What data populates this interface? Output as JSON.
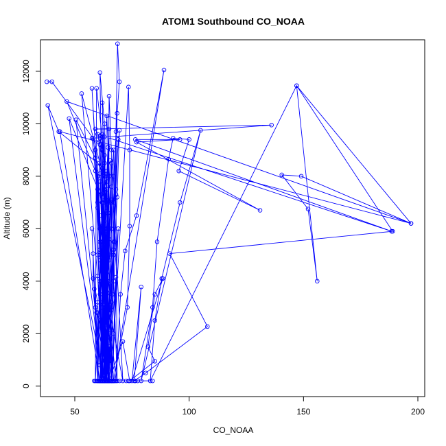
{
  "chart_data": {
    "type": "line",
    "title": "ATOM1 Southbound CO_NOAA",
    "xlabel": "CO_NOAA",
    "ylabel": "Altitude (m)",
    "xlim": [
      35,
      203
    ],
    "ylim": [
      -400,
      13200
    ],
    "xticks": [
      50,
      100,
      150,
      200
    ],
    "yticks": [
      0,
      2000,
      4000,
      6000,
      8000,
      10000,
      12000
    ],
    "grid": false,
    "legend": "none",
    "series_color": "#0000ff",
    "marker": "open-circle",
    "points": [
      [
        37.8,
        11600
      ],
      [
        40,
        11600
      ],
      [
        58,
        9450
      ],
      [
        60,
        8000
      ],
      [
        61,
        6000
      ],
      [
        62,
        4000
      ],
      [
        62.5,
        2000
      ],
      [
        63,
        200
      ],
      [
        38.2,
        10700
      ],
      [
        43,
        9700
      ],
      [
        60,
        8500
      ],
      [
        61,
        6500
      ],
      [
        62,
        3000
      ],
      [
        61,
        200
      ],
      [
        43.5,
        9700
      ],
      [
        197,
        6200
      ],
      [
        46.5,
        10850
      ],
      [
        59,
        8200
      ],
      [
        61,
        5500
      ],
      [
        63,
        3000
      ],
      [
        62,
        200
      ],
      [
        47.5,
        10200
      ],
      [
        62.5,
        7000
      ],
      [
        63,
        4500
      ],
      [
        64,
        2200
      ],
      [
        62,
        200
      ],
      [
        50.5,
        10150
      ],
      [
        63,
        8000
      ],
      [
        64,
        5000
      ],
      [
        64,
        200
      ],
      [
        53,
        11150
      ],
      [
        64,
        7500
      ],
      [
        64.5,
        4000
      ],
      [
        65,
        200
      ],
      [
        57.5,
        11350
      ],
      [
        59,
        9000
      ],
      [
        60,
        7000
      ],
      [
        60,
        5000
      ],
      [
        61,
        3500
      ],
      [
        59,
        200
      ],
      [
        59.5,
        11350
      ],
      [
        62,
        9500
      ],
      [
        62,
        7000
      ],
      [
        63,
        5000
      ],
      [
        63,
        200
      ],
      [
        61,
        11950
      ],
      [
        63,
        10000
      ],
      [
        63,
        7500
      ],
      [
        64,
        5500
      ],
      [
        64,
        3500
      ],
      [
        64,
        200
      ],
      [
        65,
        11050
      ],
      [
        66,
        9000
      ],
      [
        66,
        7000
      ],
      [
        66,
        200
      ],
      [
        68.7,
        13050
      ],
      [
        69.5,
        11600
      ],
      [
        68,
        9700
      ],
      [
        67,
        7000
      ],
      [
        67,
        5000
      ],
      [
        66,
        200
      ],
      [
        73.5,
        11400
      ],
      [
        74,
        9000
      ],
      [
        74,
        6100
      ],
      [
        73,
        3000
      ],
      [
        67,
        200
      ],
      [
        89,
        12050
      ],
      [
        77,
        6500
      ],
      [
        72,
        5150
      ],
      [
        70,
        3500
      ],
      [
        68,
        200
      ],
      [
        57.5,
        9450
      ],
      [
        136,
        9950
      ],
      [
        59,
        9800
      ],
      [
        61,
        9450
      ],
      [
        62,
        9000
      ],
      [
        63,
        8500
      ],
      [
        60,
        9600
      ],
      [
        188.5,
        5900
      ],
      [
        76.5,
        9400
      ],
      [
        96,
        9400
      ],
      [
        77,
        9300
      ],
      [
        131,
        6700
      ],
      [
        95.5,
        8200
      ],
      [
        100,
        9400
      ],
      [
        93,
        9450
      ],
      [
        91,
        8650
      ],
      [
        86,
        5500
      ],
      [
        84,
        3000
      ],
      [
        79,
        200
      ],
      [
        105,
        9750
      ],
      [
        96,
        7000
      ],
      [
        88,
        4100
      ],
      [
        85,
        2500
      ],
      [
        83,
        200
      ],
      [
        147,
        11450
      ],
      [
        156,
        4000
      ],
      [
        152,
        6750
      ],
      [
        140.5,
        8050
      ],
      [
        149,
        8000
      ],
      [
        197,
        6200
      ],
      [
        147,
        11450
      ],
      [
        189,
        5900
      ],
      [
        91.5,
        5050
      ],
      [
        108,
        2270
      ],
      [
        81,
        500
      ],
      [
        76,
        200
      ],
      [
        79,
        3780
      ],
      [
        75,
        200
      ],
      [
        88.5,
        4100
      ],
      [
        85,
        3500
      ],
      [
        82,
        1500
      ],
      [
        85,
        950
      ],
      [
        74,
        200
      ],
      [
        71,
        1700
      ],
      [
        65,
        200
      ],
      [
        60,
        2800
      ],
      [
        61.5,
        200
      ],
      [
        59,
        3000
      ],
      [
        60.5,
        200
      ],
      [
        58,
        5050
      ],
      [
        58,
        4100
      ],
      [
        60,
        3200
      ],
      [
        60,
        200
      ],
      [
        57.5,
        6000
      ],
      [
        58.5,
        3700
      ],
      [
        59.5,
        2800
      ],
      [
        63.8,
        200
      ],
      [
        60,
        4200
      ],
      [
        61,
        2500
      ],
      [
        62.5,
        200
      ],
      [
        64,
        4700
      ],
      [
        66,
        2900
      ],
      [
        64.5,
        200
      ],
      [
        68,
        4150
      ],
      [
        67,
        2000
      ],
      [
        66.5,
        200
      ],
      [
        69,
        6000
      ],
      [
        67,
        4000
      ],
      [
        68.5,
        200
      ],
      [
        68,
        7300
      ],
      [
        67,
        5500
      ],
      [
        65,
        3000
      ],
      [
        71,
        200
      ],
      [
        66,
        8500
      ],
      [
        65,
        6000
      ],
      [
        64,
        4000
      ],
      [
        63,
        200
      ],
      [
        69,
        9400
      ],
      [
        68,
        7500
      ],
      [
        67,
        5000
      ],
      [
        65,
        2000
      ],
      [
        66,
        200
      ],
      [
        68.5,
        10400
      ],
      [
        67,
        8000
      ],
      [
        66,
        6000
      ],
      [
        64,
        200
      ],
      [
        67,
        9000
      ],
      [
        65,
        7000
      ],
      [
        64,
        5000
      ],
      [
        63,
        2500
      ],
      [
        65,
        200
      ],
      [
        62,
        10800
      ],
      [
        63,
        8000
      ],
      [
        62,
        6000
      ],
      [
        61,
        4000
      ],
      [
        62,
        200
      ],
      [
        63,
        9500
      ],
      [
        62,
        7000
      ],
      [
        61,
        5000
      ],
      [
        60,
        200
      ],
      [
        64,
        10300
      ],
      [
        65,
        8000
      ],
      [
        64,
        6000
      ],
      [
        63,
        3000
      ],
      [
        65,
        200
      ],
      [
        62,
        9000
      ],
      [
        63,
        6000
      ],
      [
        62,
        3000
      ],
      [
        61,
        200
      ],
      [
        66,
        7100
      ],
      [
        65,
        5000
      ],
      [
        64,
        2800
      ],
      [
        67,
        200
      ],
      [
        61,
        7800
      ],
      [
        62,
        5500
      ],
      [
        63,
        3500
      ],
      [
        64,
        200
      ],
      [
        60,
        7500
      ],
      [
        61,
        5200
      ],
      [
        62,
        3200
      ],
      [
        63,
        200
      ],
      [
        64,
        8200
      ],
      [
        63,
        6500
      ],
      [
        62,
        4500
      ],
      [
        61,
        200
      ],
      [
        69.5,
        9750
      ],
      [
        68.5,
        7200
      ],
      [
        67.5,
        5500
      ],
      [
        66.5,
        3500
      ],
      [
        64.5,
        200
      ],
      [
        65,
        9800
      ],
      [
        64,
        7800
      ],
      [
        63,
        5800
      ],
      [
        62,
        200
      ],
      [
        59,
        8700
      ],
      [
        60,
        6800
      ],
      [
        61,
        4800
      ],
      [
        62,
        200
      ],
      [
        62,
        9600
      ],
      [
        63,
        7600
      ],
      [
        64,
        5600
      ],
      [
        65,
        200
      ],
      [
        61,
        9200
      ],
      [
        62,
        7200
      ],
      [
        63,
        5200
      ],
      [
        64,
        200
      ],
      [
        60.5,
        9300
      ],
      [
        61.5,
        7300
      ],
      [
        62.5,
        5300
      ],
      [
        63.5,
        200
      ],
      [
        63,
        8800
      ],
      [
        64,
        6800
      ],
      [
        65,
        4800
      ],
      [
        66,
        200
      ],
      [
        62,
        8300
      ],
      [
        63,
        6300
      ],
      [
        64,
        4300
      ],
      [
        65,
        200
      ],
      [
        61,
        8100
      ],
      [
        62,
        6100
      ],
      [
        63,
        4100
      ],
      [
        64,
        200
      ],
      [
        64.5,
        9100
      ],
      [
        63.5,
        7100
      ],
      [
        62.5,
        5100
      ],
      [
        61.5,
        200
      ],
      [
        65.5,
        8600
      ],
      [
        64.5,
        6600
      ],
      [
        63.5,
        4600
      ],
      [
        62.5,
        200
      ],
      [
        66,
        7600
      ],
      [
        65,
        5600
      ],
      [
        64,
        3600
      ],
      [
        63,
        200
      ],
      [
        67,
        5200
      ],
      [
        66,
        3200
      ],
      [
        65,
        200
      ],
      [
        63,
        2600
      ],
      [
        62,
        200
      ],
      [
        64,
        1800
      ],
      [
        63,
        200
      ],
      [
        65,
        1500
      ],
      [
        64,
        200
      ],
      [
        62,
        1200
      ],
      [
        61,
        200
      ],
      [
        66,
        1000
      ],
      [
        65,
        200
      ],
      [
        61,
        800
      ],
      [
        62,
        200
      ],
      [
        64,
        600
      ],
      [
        63,
        200
      ],
      [
        63,
        400
      ],
      [
        64,
        200
      ],
      [
        58.5,
        200
      ],
      [
        59.5,
        200
      ],
      [
        60.5,
        200
      ],
      [
        61.5,
        200
      ],
      [
        62.5,
        200
      ],
      [
        63.5,
        200
      ],
      [
        64.5,
        200
      ],
      [
        65.5,
        200
      ],
      [
        66.5,
        200
      ],
      [
        67.5,
        200
      ],
      [
        69.5,
        200
      ],
      [
        72.5,
        200
      ],
      [
        73.5,
        200
      ],
      [
        76.5,
        200
      ],
      [
        77.5,
        200
      ],
      [
        84,
        200
      ]
    ]
  }
}
